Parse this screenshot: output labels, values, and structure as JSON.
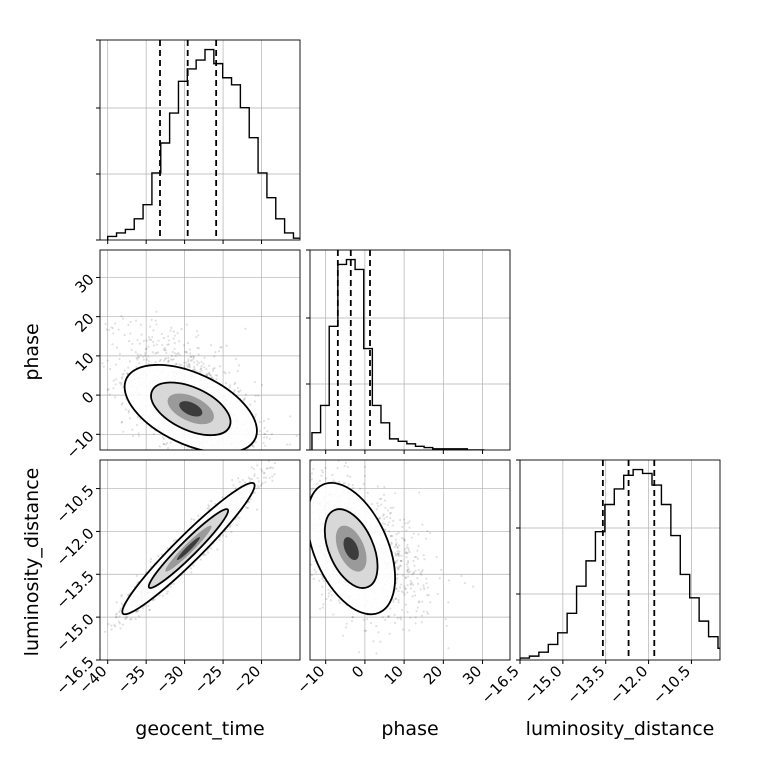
{
  "chart_data": {
    "type": "corner",
    "parameters": [
      "geocent_time",
      "phase",
      "luminosity_distance"
    ],
    "axis_labels": {
      "geocent_time": "geocent_time",
      "phase": "phase",
      "luminosity_distance": "luminosity_distance"
    },
    "ranges": {
      "geocent_time": [
        -41,
        -15
      ],
      "phase": [
        -14,
        37
      ],
      "luminosity_distance": [
        -16.5,
        -9.5
      ]
    },
    "ticks": {
      "geocent_time": [
        {
          "v": -40,
          "label": "−40"
        },
        {
          "v": -35,
          "label": "−35"
        },
        {
          "v": -30,
          "label": "−30"
        },
        {
          "v": -25,
          "label": "−25"
        },
        {
          "v": -20,
          "label": "−20"
        }
      ],
      "phase": [
        {
          "v": -10,
          "label": "−10"
        },
        {
          "v": 0,
          "label": "0"
        },
        {
          "v": 10,
          "label": "10"
        },
        {
          "v": 20,
          "label": "20"
        },
        {
          "v": 30,
          "label": "30"
        }
      ],
      "luminosity_distance": [
        {
          "v": -16.5,
          "label": "−16.5"
        },
        {
          "v": -15.0,
          "label": "−15.0"
        },
        {
          "v": -13.5,
          "label": "−13.5"
        },
        {
          "v": -12.0,
          "label": "−12.0"
        },
        {
          "v": -10.5,
          "label": "−10.5"
        }
      ]
    },
    "histograms": {
      "geocent_time": {
        "edges_start": -40,
        "bin_width": 1.15,
        "counts": [
          2,
          4,
          6,
          12,
          20,
          38,
          55,
          72,
          90,
          97,
          102,
          108,
          100,
          92,
          88,
          75,
          58,
          38,
          24,
          12,
          4,
          1
        ],
        "quantiles": [
          -33.2,
          -29.6,
          -25.9
        ]
      },
      "phase": {
        "edges_start": -13.5,
        "bin_width": 2.2,
        "counts": [
          14,
          36,
          100,
          150,
          154,
          146,
          82,
          36,
          22,
          9,
          7,
          5,
          3,
          2,
          1,
          1,
          1,
          1,
          0,
          0
        ],
        "quantiles": [
          -6.9,
          -3.6,
          1.3
        ]
      },
      "luminosity_distance": {
        "edges_start": -16.5,
        "bin_width": 0.33,
        "counts": [
          1,
          2,
          4,
          8,
          14,
          24,
          38,
          51,
          66,
          80,
          88,
          95,
          98,
          96,
          90,
          80,
          64,
          44,
          32,
          20,
          12,
          6,
          4,
          2
        ],
        "quantiles": [
          -13.6,
          -12.7,
          -11.8
        ]
      }
    },
    "joint": {
      "phase_vs_geocent_time": {
        "mean": [
          -29.2,
          -3.5
        ],
        "sd": [
          4.3,
          5.6
        ],
        "corr": -0.5
      },
      "luminosity_distance_vs_geocent_time": {
        "mean": [
          -29.5,
          -12.6
        ],
        "sd": [
          4.3,
          1.15
        ],
        "corr": 0.96
      },
      "luminosity_distance_vs_phase": {
        "mean": [
          -3.5,
          -12.6
        ],
        "sd": [
          5.6,
          1.15
        ],
        "corr": -0.45
      }
    },
    "grid": true,
    "quantile_lines": "dashed"
  }
}
